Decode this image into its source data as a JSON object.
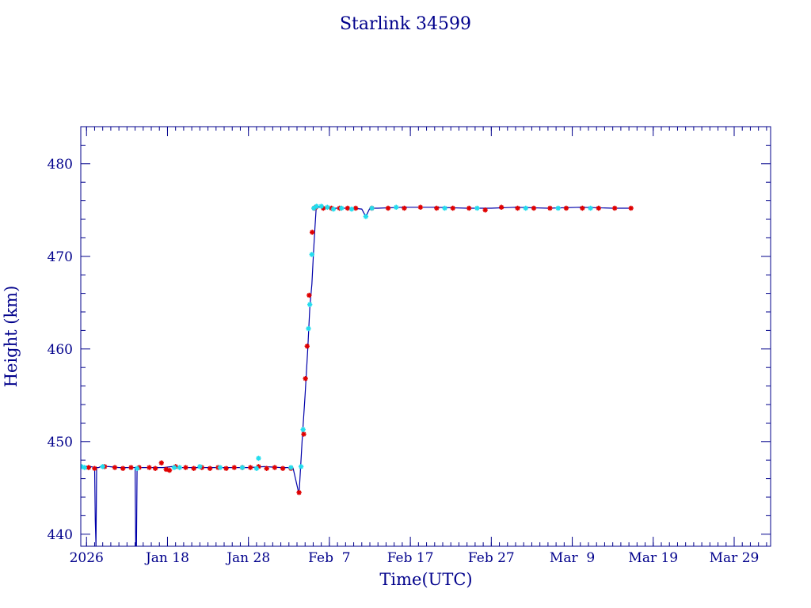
{
  "chart_data": {
    "type": "line",
    "title": "Starlink 34599",
    "xlabel": "Time(UTC)",
    "ylabel": "Height (km)",
    "x_unit": "date (UTC)",
    "xlim": [
      "2026-01-07T07:00",
      "2026-04-02T12:00"
    ],
    "ylim": [
      438.7,
      484.0
    ],
    "x_ticks": [
      {
        "label": "2026",
        "date": "2026-01-08"
      },
      {
        "label": "Jan 18",
        "date": "2026-01-18"
      },
      {
        "label": "Jan 28",
        "date": "2026-01-28"
      },
      {
        "label": "Feb  7",
        "date": "2026-02-07"
      },
      {
        "label": "Feb 17",
        "date": "2026-02-17"
      },
      {
        "label": "Feb 27",
        "date": "2026-02-27"
      },
      {
        "label": "Mar  9",
        "date": "2026-03-09"
      },
      {
        "label": "Mar 19",
        "date": "2026-03-19"
      },
      {
        "label": "Mar 29",
        "date": "2026-03-29"
      }
    ],
    "y_ticks": [
      440,
      450,
      460,
      470,
      480
    ],
    "grid": false,
    "colors": {
      "frame": "#00008b",
      "line": "#0000aa",
      "series_red": "#e00000",
      "series_cyan": "#22ddee"
    },
    "line": {
      "name": "",
      "x": [
        "2026-01-07T09:00",
        "2026-01-08T12:00",
        "2026-01-09T00:00",
        "2026-01-09T02:00",
        "2026-01-09T04:00",
        "2026-01-09T06:00",
        "2026-01-09T12:00",
        "2026-01-09T18:00",
        "2026-01-10T00:00",
        "2026-01-10T18:00",
        "2026-01-12T00:00",
        "2026-01-14T00:00",
        "2026-01-14T02:00",
        "2026-01-14T04:00",
        "2026-01-14T06:00",
        "2026-01-14T12:00",
        "2026-01-16T00:00",
        "2026-01-17T12:00",
        "2026-01-18T12:00",
        "2026-01-19T12:00",
        "2026-01-20T12:00",
        "2026-01-22T00:00",
        "2026-01-24T00:00",
        "2026-01-26T00:00",
        "2026-01-28T00:00",
        "2026-01-30T00:00",
        "2026-02-01T00:00",
        "2026-02-02T12:00",
        "2026-02-03T06:00",
        "2026-02-03T15:00",
        "2026-02-04T00:00",
        "2026-02-04T08:00",
        "2026-02-04T14:00",
        "2026-02-04T20:00",
        "2026-02-05T01:00",
        "2026-02-05T05:00",
        "2026-02-05T09:00",
        "2026-02-05T12:00",
        "2026-02-06T00:00",
        "2026-02-07T00:00",
        "2026-02-08T00:00",
        "2026-02-09T00:00",
        "2026-02-10T00:00",
        "2026-02-11T00:00",
        "2026-02-11T12:00",
        "2026-02-12T00:00",
        "2026-02-13T00:00",
        "2026-02-16T00:00",
        "2026-02-20T00:00",
        "2026-02-24T00:00",
        "2026-02-27T00:00",
        "2026-03-02T00:00",
        "2026-03-06T00:00",
        "2026-03-10T00:00",
        "2026-03-14T00:00",
        "2026-03-16T12:00"
      ],
      "y": [
        447.3,
        447.3,
        447.2,
        441.5,
        438.7,
        447.2,
        447.2,
        447.3,
        447.3,
        447.3,
        447.2,
        447.2,
        438.7,
        438.7,
        447.2,
        447.2,
        447.2,
        447.2,
        447.3,
        447.2,
        447.2,
        447.2,
        447.2,
        447.2,
        447.2,
        447.3,
        447.2,
        447.2,
        444.3,
        450.0,
        455.0,
        460.0,
        464.5,
        467.0,
        470.5,
        473.0,
        475.3,
        475.3,
        475.3,
        475.2,
        475.2,
        475.2,
        475.2,
        475.1,
        474.3,
        475.2,
        475.2,
        475.3,
        475.3,
        475.2,
        475.2,
        475.3,
        475.2,
        475.3,
        475.2,
        475.2
      ]
    },
    "series": [
      {
        "name": "",
        "color": "#e00000",
        "x": [
          "2026-01-08T06:00",
          "2026-01-09T00:00",
          "2026-01-10T06:00",
          "2026-01-11T12:00",
          "2026-01-12T12:00",
          "2026-01-13T12:00",
          "2026-01-14T12:00",
          "2026-01-15T18:00",
          "2026-01-16T12:00",
          "2026-01-17T06:00",
          "2026-01-17T20:00",
          "2026-01-18T06:00",
          "2026-01-19T00:00",
          "2026-01-20T06:00",
          "2026-01-21T06:00",
          "2026-01-22T06:00",
          "2026-01-23T06:00",
          "2026-01-24T06:00",
          "2026-01-25T06:00",
          "2026-01-26T06:00",
          "2026-01-27T06:00",
          "2026-01-28T06:00",
          "2026-01-29T06:00",
          "2026-01-30T06:00",
          "2026-01-31T06:00",
          "2026-02-01T06:00",
          "2026-02-02T06:00",
          "2026-02-03T06:00",
          "2026-02-03T20:00",
          "2026-02-04T01:00",
          "2026-02-04T06:00",
          "2026-02-04T12:00",
          "2026-02-04T21:00",
          "2026-02-05T03:00",
          "2026-02-05T08:00",
          "2026-02-06T06:00",
          "2026-02-07T06:00",
          "2026-02-08T06:00",
          "2026-02-09T06:00",
          "2026-02-10T06:00",
          "2026-02-12T06:00",
          "2026-02-14T06:00",
          "2026-02-16T06:00",
          "2026-02-18T06:00",
          "2026-02-20T06:00",
          "2026-02-22T06:00",
          "2026-02-24T06:00",
          "2026-02-26T06:00",
          "2026-02-28T06:00",
          "2026-03-02T06:00",
          "2026-03-04T06:00",
          "2026-03-06T06:00",
          "2026-03-08T06:00",
          "2026-03-10T06:00",
          "2026-03-12T06:00",
          "2026-03-14T06:00",
          "2026-03-16T06:00"
        ],
        "y": [
          447.2,
          447.1,
          447.3,
          447.2,
          447.1,
          447.2,
          447.2,
          447.2,
          447.1,
          447.7,
          447.0,
          446.9,
          447.3,
          447.2,
          447.1,
          447.2,
          447.1,
          447.2,
          447.1,
          447.2,
          447.2,
          447.2,
          447.3,
          447.1,
          447.2,
          447.1,
          447.1,
          444.5,
          450.8,
          456.8,
          460.3,
          465.8,
          472.6,
          475.2,
          475.3,
          475.2,
          475.2,
          475.2,
          475.2,
          475.2,
          475.2,
          475.2,
          475.2,
          475.3,
          475.2,
          475.2,
          475.2,
          475.0,
          475.3,
          475.2,
          475.2,
          475.2,
          475.2,
          475.2,
          475.2,
          475.2,
          475.2
        ]
      },
      {
        "name": "",
        "color": "#22ddee",
        "x": [
          "2026-01-07T09:00",
          "2026-01-07T18:00",
          "2026-01-10T00:00",
          "2026-01-14T06:00",
          "2026-01-18T20:00",
          "2026-01-19T12:00",
          "2026-01-22T00:00",
          "2026-01-24T12:00",
          "2026-01-27T06:00",
          "2026-01-29T00:00",
          "2026-01-29T06:00",
          "2026-02-02T06:00",
          "2026-02-03T12:00",
          "2026-02-03T18:00",
          "2026-02-04T10:00",
          "2026-02-04T14:00",
          "2026-02-04T20:00",
          "2026-02-05T02:00",
          "2026-02-05T10:00",
          "2026-02-06T00:00",
          "2026-02-06T18:00",
          "2026-02-07T12:00",
          "2026-02-08T12:00",
          "2026-02-09T18:00",
          "2026-02-11T12:00",
          "2026-02-12T06:00",
          "2026-02-15T06:00",
          "2026-02-21T06:00",
          "2026-02-25T06:00",
          "2026-03-03T06:00",
          "2026-03-07T06:00",
          "2026-03-11T06:00"
        ],
        "y": [
          447.3,
          447.2,
          447.3,
          447.1,
          447.2,
          447.2,
          447.3,
          447.2,
          447.2,
          447.1,
          448.2,
          447.2,
          447.3,
          451.3,
          462.2,
          464.8,
          470.2,
          475.2,
          475.4,
          475.4,
          475.3,
          475.1,
          475.2,
          475.1,
          474.3,
          475.2,
          475.3,
          475.2,
          475.2,
          475.2,
          475.2,
          475.2
        ]
      }
    ]
  }
}
